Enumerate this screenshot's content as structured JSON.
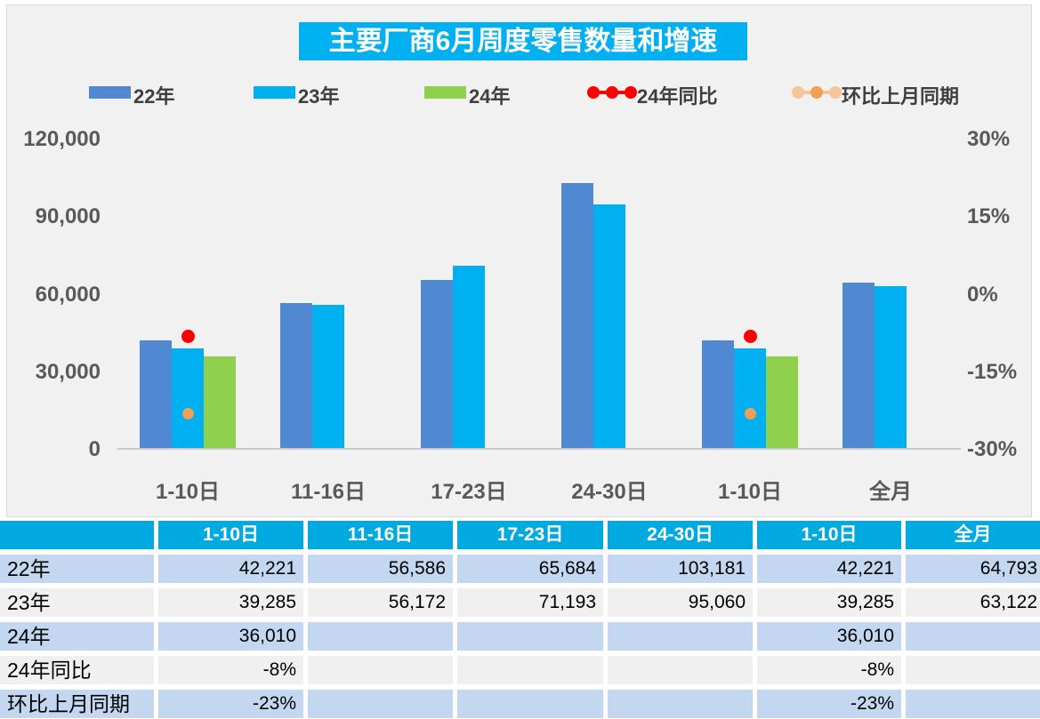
{
  "title": "主要厂商6月周度零售数量和增速",
  "legend": {
    "items": [
      {
        "label": "22年",
        "marker": "swatch",
        "color": "#5188D2"
      },
      {
        "label": "23年",
        "marker": "swatch",
        "color": "#00B0F0"
      },
      {
        "label": "24年",
        "marker": "swatch",
        "color": "#8FD04C"
      },
      {
        "label": "24年同比",
        "marker": "line-dots",
        "dot_color": "#FE0000",
        "line_color": "#FE0000"
      },
      {
        "label": "环比上月同期",
        "marker": "line-dots",
        "dot_color": "#F0A055",
        "line_color": "#F6C49A"
      }
    ]
  },
  "chart_data": {
    "type": "bar",
    "title": "主要厂商6月周度零售数量和增速",
    "categories": [
      "1-10日",
      "11-16日",
      "17-23日",
      "24-30日",
      "1-10日",
      "全月"
    ],
    "series": [
      {
        "name": "22年",
        "type": "bar",
        "axis": "left",
        "color": "#5188D2",
        "values": [
          42221,
          56586,
          65684,
          103181,
          42221,
          64793
        ]
      },
      {
        "name": "23年",
        "type": "bar",
        "axis": "left",
        "color": "#00B0F0",
        "values": [
          39285,
          56172,
          71193,
          95060,
          39285,
          63122
        ]
      },
      {
        "name": "24年",
        "type": "bar",
        "axis": "left",
        "color": "#8FD04C",
        "values": [
          36010,
          null,
          null,
          null,
          36010,
          null
        ]
      },
      {
        "name": "24年同比",
        "type": "point",
        "axis": "right",
        "color": "#FE0000",
        "values": [
          -0.08,
          null,
          null,
          null,
          -0.08,
          null
        ]
      },
      {
        "name": "环比上月同期",
        "type": "point",
        "axis": "right",
        "color": "#F0A055",
        "values": [
          -0.23,
          null,
          null,
          null,
          -0.23,
          null
        ]
      }
    ],
    "left_axis": {
      "min": 0,
      "max": 120000,
      "ticks": [
        "120,000",
        "90,000",
        "60,000",
        "30,000",
        "0"
      ]
    },
    "right_axis": {
      "min": -0.3,
      "max": 0.3,
      "ticks": [
        "30%",
        "15%",
        "0%",
        "-15%",
        "-30%"
      ]
    },
    "grid": false,
    "legend_position": "top"
  },
  "table": {
    "header": [
      "",
      "1-10日",
      "11-16日",
      "17-23日",
      "24-30日",
      "1-10日",
      "全月"
    ],
    "rows": [
      {
        "label": "22年",
        "values": [
          "42,221",
          "56,586",
          "65,684",
          "103,181",
          "42,221",
          "64,793"
        ]
      },
      {
        "label": "23年",
        "values": [
          "39,285",
          "56,172",
          "71,193",
          "95,060",
          "39,285",
          "63,122"
        ]
      },
      {
        "label": "24年",
        "values": [
          "36,010",
          "",
          "",
          "",
          "36,010",
          ""
        ]
      },
      {
        "label": "24年同比",
        "values": [
          "-8%",
          "",
          "",
          "",
          "-8%",
          ""
        ]
      },
      {
        "label": "环比上月同期",
        "values": [
          "-23%",
          "",
          "",
          "",
          "-23%",
          ""
        ]
      }
    ]
  },
  "colors": {
    "title_bg": "#00B0F0",
    "title_text": "#FFFFFF",
    "panel_bg": "#F1F1F1",
    "panel_border": "#D9D9D9",
    "axis_text": "#595959",
    "legend_text": "#3F3F3F",
    "baseline": "#C9C9C9",
    "bar_blue": "#5188D2",
    "bar_cyan": "#00B0F0",
    "bar_green": "#8FD04C",
    "dot_red": "#FE0000",
    "dot_orange": "#F0A055",
    "table_header_bg": "#00A9E0",
    "table_header_text": "#FFFFFF",
    "row_blue": "#C3D7F0",
    "row_gray": "#F0F0F0",
    "table_text": "#000000"
  }
}
